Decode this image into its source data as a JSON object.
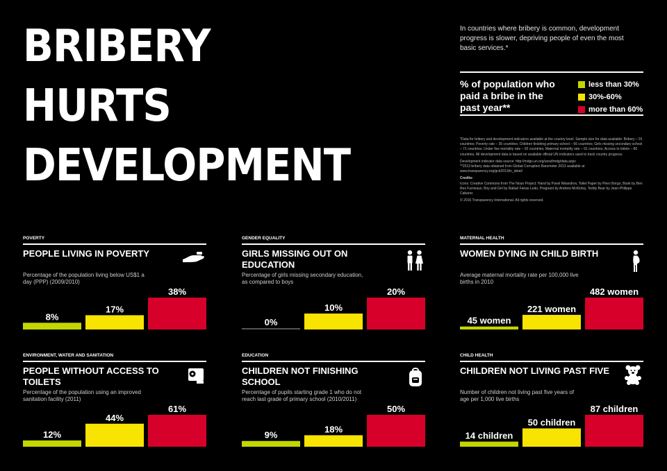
{
  "title": {
    "line1": "BRIBERY",
    "line2": "HURTS",
    "line3": "DEVELOPMENT"
  },
  "intro": "In countries where bribery is common, development progress is slower, depriving people of even the most basic services.*",
  "legend": {
    "title": "% of population who paid a bribe in the past year**",
    "items": [
      {
        "label": "less than 30%",
        "color": "#c3d600"
      },
      {
        "label": "30%-60%",
        "color": "#f7e400"
      },
      {
        "label": "more than 60%",
        "color": "#d6002a"
      }
    ]
  },
  "notes": {
    "n1": "*Data for bribery and development indicators available at the country level. Sample size for data available: Bribery – 91 countries; Poverty rate – 35 countries; Children finishing primary school – 66 countries; Girls missing secondary school – 71 countries; Under five mortality rate – 92 countries; Maternal mortality rate – 91 countries; Access to toilets – 86 countries. All development data is based on available official UN indicators used to track country progress.",
    "n2": "Development indicator data source: http://mdgs.un.org/unsd/mdg/data.aspx",
    "n3": "**2013 bribery data obtained from Global Corruption Barometer 2013 available at www.transparency.org/gcb2013/in_detail",
    "credits_label": "Credits:",
    "credits": "Icons: Creative Commons from The Noun Project: Hand by Pavel Nikandrov, Toilet Paper by Piero Borgo, Book by Ben Rex Furneaux, Boy and Girl by Rafael Farias Leão, Pregnant by Andrew McKinley, Teddy Bear by Jean-Philippe Cabaroc",
    "copyright": "© 2016 Transparency International. All rights reserved."
  },
  "chart_data": [
    {
      "type": "bar",
      "category": "POVERTY",
      "title": "PEOPLE LIVING IN POVERTY",
      "description": "Percentage of the population living below US$1 a day (PPP) (2009/2010)",
      "icon": "hand-icon",
      "values": [
        8,
        17,
        38
      ],
      "labels": [
        "8%",
        "17%",
        "38%"
      ],
      "colors": [
        "#c3d600",
        "#f7e400",
        "#d6002a"
      ]
    },
    {
      "type": "bar",
      "category": "GENDER EQUALITY",
      "title": "GIRLS MISSING OUT ON EDUCATION",
      "description": "Percentage of girls missing secondary education, as compared to boys",
      "icon": "boy-and-girl-icon",
      "values": [
        0,
        10,
        20
      ],
      "labels": [
        "0%",
        "10%",
        "20%"
      ],
      "colors": [
        "#c3d600",
        "#f7e400",
        "#d6002a"
      ]
    },
    {
      "type": "bar",
      "category": "MATERNAL HEALTH",
      "title": "WOMEN DYING IN CHILD BIRTH",
      "description": "Average maternal mortality rate per 100,000 live births in 2010",
      "icon": "pregnant-icon",
      "values": [
        45,
        221,
        482
      ],
      "labels": [
        "45 women",
        "221 women",
        "482 women"
      ],
      "colors": [
        "#c3d600",
        "#f7e400",
        "#d6002a"
      ]
    },
    {
      "type": "bar",
      "category": "ENVIRONMENT, WATER AND SANITATION",
      "title": "PEOPLE WITHOUT ACCESS TO TOILETS",
      "description": "Percentage of the population using an improved sanitation facility (2011)",
      "icon": "toilet-paper-icon",
      "values": [
        12,
        44,
        61
      ],
      "labels": [
        "12%",
        "44%",
        "61%"
      ],
      "colors": [
        "#c3d600",
        "#f7e400",
        "#d6002a"
      ]
    },
    {
      "type": "bar",
      "category": "EDUCATION",
      "title": "CHILDREN NOT FINISHING SCHOOL",
      "description": "Percentage of pupils starting grade 1 who do not reach last grade of primary school (2010/2011)",
      "icon": "backpack-icon",
      "values": [
        9,
        18,
        50
      ],
      "labels": [
        "9%",
        "18%",
        "50%"
      ],
      "colors": [
        "#c3d600",
        "#f7e400",
        "#d6002a"
      ]
    },
    {
      "type": "bar",
      "category": "CHILD HEALTH",
      "title": "CHILDREN NOT LIVING PAST FIVE",
      "description": "Number of children not living past five years of age per 1,000 live births",
      "icon": "teddy-bear-icon",
      "values": [
        14,
        50,
        87
      ],
      "labels": [
        "14 children",
        "50 children",
        "87 children"
      ],
      "colors": [
        "#c3d600",
        "#f7e400",
        "#d6002a"
      ]
    }
  ]
}
